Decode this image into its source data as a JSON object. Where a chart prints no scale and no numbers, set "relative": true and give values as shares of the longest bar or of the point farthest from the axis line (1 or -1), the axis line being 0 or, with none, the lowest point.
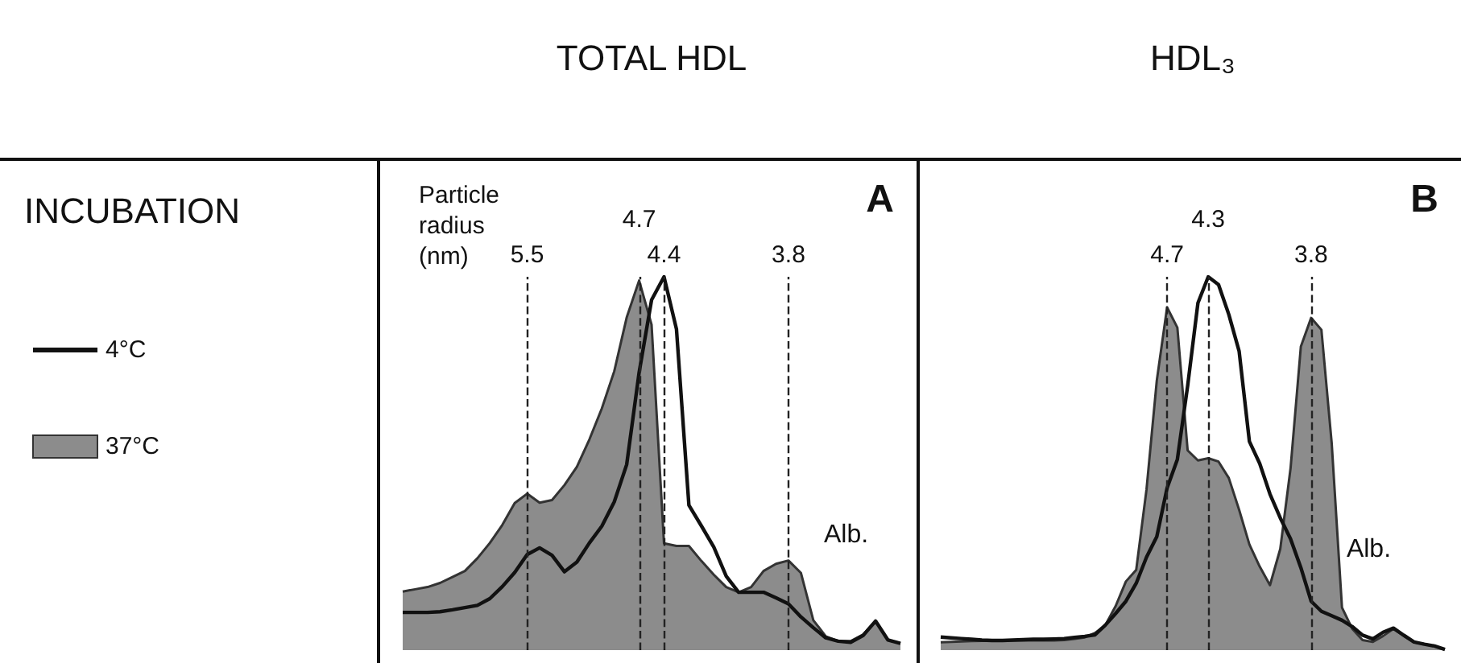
{
  "chart_data": [
    {
      "type": "area",
      "title": "TOTAL HDL",
      "relative": true,
      "legend": "left",
      "legend_title": "INCUBATION",
      "marker": "none",
      "tick_labels": "x",
      "categories": [
        null,
        null,
        null,
        null,
        null,
        null,
        null,
        null,
        null,
        null,
        "5.5",
        null,
        null,
        null,
        null,
        null,
        null,
        null,
        null,
        "4.7",
        null,
        "4.4",
        null,
        null,
        null,
        null,
        null,
        null,
        null,
        null,
        null,
        "3.8",
        null,
        null,
        null,
        null,
        null,
        null,
        null,
        null,
        null
      ],
      "annotations": [
        "Particle radius (nm)",
        "A",
        {
          "text": "Alb.",
          "x": "3.8",
          "y": 0.24
        }
      ],
      "ref_lines": [
        {
          "axis": "x",
          "value": "5.5"
        },
        {
          "axis": "x",
          "value": "4.7"
        },
        {
          "axis": "x",
          "value": "4.4"
        },
        {
          "axis": "x",
          "value": "3.8"
        }
      ],
      "series": [
        {
          "name": "4°C",
          "type": "line",
          "color": "#111111",
          "values": [
            0.101,
            0.101,
            0.101,
            0.103,
            0.108,
            0.114,
            0.12,
            0.138,
            0.17,
            0.208,
            0.256,
            0.274,
            0.254,
            0.21,
            0.236,
            0.287,
            0.332,
            0.397,
            0.497,
            0.744,
            0.938,
            1,
            0.86,
            0.388,
            0.333,
            0.276,
            0.198,
            0.155,
            0.155,
            0.155,
            0.14,
            0.124,
            0.089,
            0.06,
            0.033,
            0.024,
            0.021,
            0.039,
            0.078,
            0.027,
            0.018
          ]
        },
        {
          "name": "37°C",
          "type": "area",
          "color": "#8c8c8c",
          "values": [
            0.157,
            0.163,
            0.169,
            0.18,
            0.196,
            0.212,
            0.246,
            0.287,
            0.335,
            0.394,
            0.419,
            0.395,
            0.402,
            0.442,
            0.491,
            0.564,
            0.647,
            0.747,
            0.891,
            0.99,
            0.872,
            0.286,
            0.279,
            0.279,
            0.239,
            0.202,
            0.169,
            0.155,
            0.169,
            0.212,
            0.231,
            0.24,
            0.207,
            0.08,
            0.037,
            0.024,
            0.024,
            0.042,
            0.078,
            0.027,
            0.018
          ]
        }
      ]
    },
    {
      "type": "area",
      "title": "HDL₃",
      "relative": true,
      "marker": "none",
      "tick_labels": "x",
      "categories": [
        null,
        null,
        null,
        null,
        null,
        null,
        null,
        null,
        null,
        null,
        null,
        null,
        null,
        null,
        null,
        null,
        null,
        null,
        null,
        null,
        null,
        null,
        "4.7",
        null,
        null,
        null,
        "4.3",
        null,
        null,
        null,
        null,
        null,
        null,
        null,
        null,
        null,
        "3.8",
        null,
        null,
        null,
        null,
        null,
        null,
        null,
        null,
        null,
        null,
        null,
        null,
        null
      ],
      "annotations": [
        "B",
        {
          "text": "Alb.",
          "x": "3.8",
          "y": 0.2
        }
      ],
      "ref_lines": [
        {
          "axis": "x",
          "value": "4.7"
        },
        {
          "axis": "x",
          "value": "4.3"
        },
        {
          "axis": "x",
          "value": "3.8"
        }
      ],
      "series": [
        {
          "type": "line",
          "color": "#111111",
          "values": [
            0.035,
            0.033,
            0.031,
            0.029,
            0.027,
            0.026,
            0.026,
            0.027,
            0.028,
            0.029,
            0.029,
            0.03,
            0.031,
            0.034,
            0.037,
            0.041,
            0.067,
            0.098,
            0.131,
            0.179,
            0.249,
            0.304,
            0.434,
            0.511,
            0.708,
            0.93,
            1,
            0.979,
            0.899,
            0.801,
            0.559,
            0.5,
            0.418,
            0.354,
            0.298,
            0.221,
            0.131,
            0.104,
            0.092,
            0.08,
            0.063,
            0.04,
            0.03,
            0.048,
            0.059,
            0.04,
            0.022,
            0.016,
            0.011,
            0.002
          ]
        },
        {
          "type": "area",
          "color": "#8c8c8c",
          "values": [
            0.021,
            0.022,
            0.023,
            0.024,
            0.025,
            0.026,
            0.026,
            0.026,
            0.026,
            0.026,
            0.026,
            0.026,
            0.027,
            0.03,
            0.034,
            0.046,
            0.067,
            0.118,
            0.184,
            0.215,
            0.43,
            0.722,
            0.918,
            0.864,
            0.535,
            0.508,
            0.514,
            0.505,
            0.461,
            0.376,
            0.283,
            0.224,
            0.174,
            0.271,
            0.487,
            0.813,
            0.89,
            0.858,
            0.554,
            0.114,
            0.057,
            0.027,
            0.022,
            0.038,
            0.057,
            0.038,
            0.021,
            0.016,
            0.011,
            0.002
          ]
        }
      ]
    }
  ]
}
